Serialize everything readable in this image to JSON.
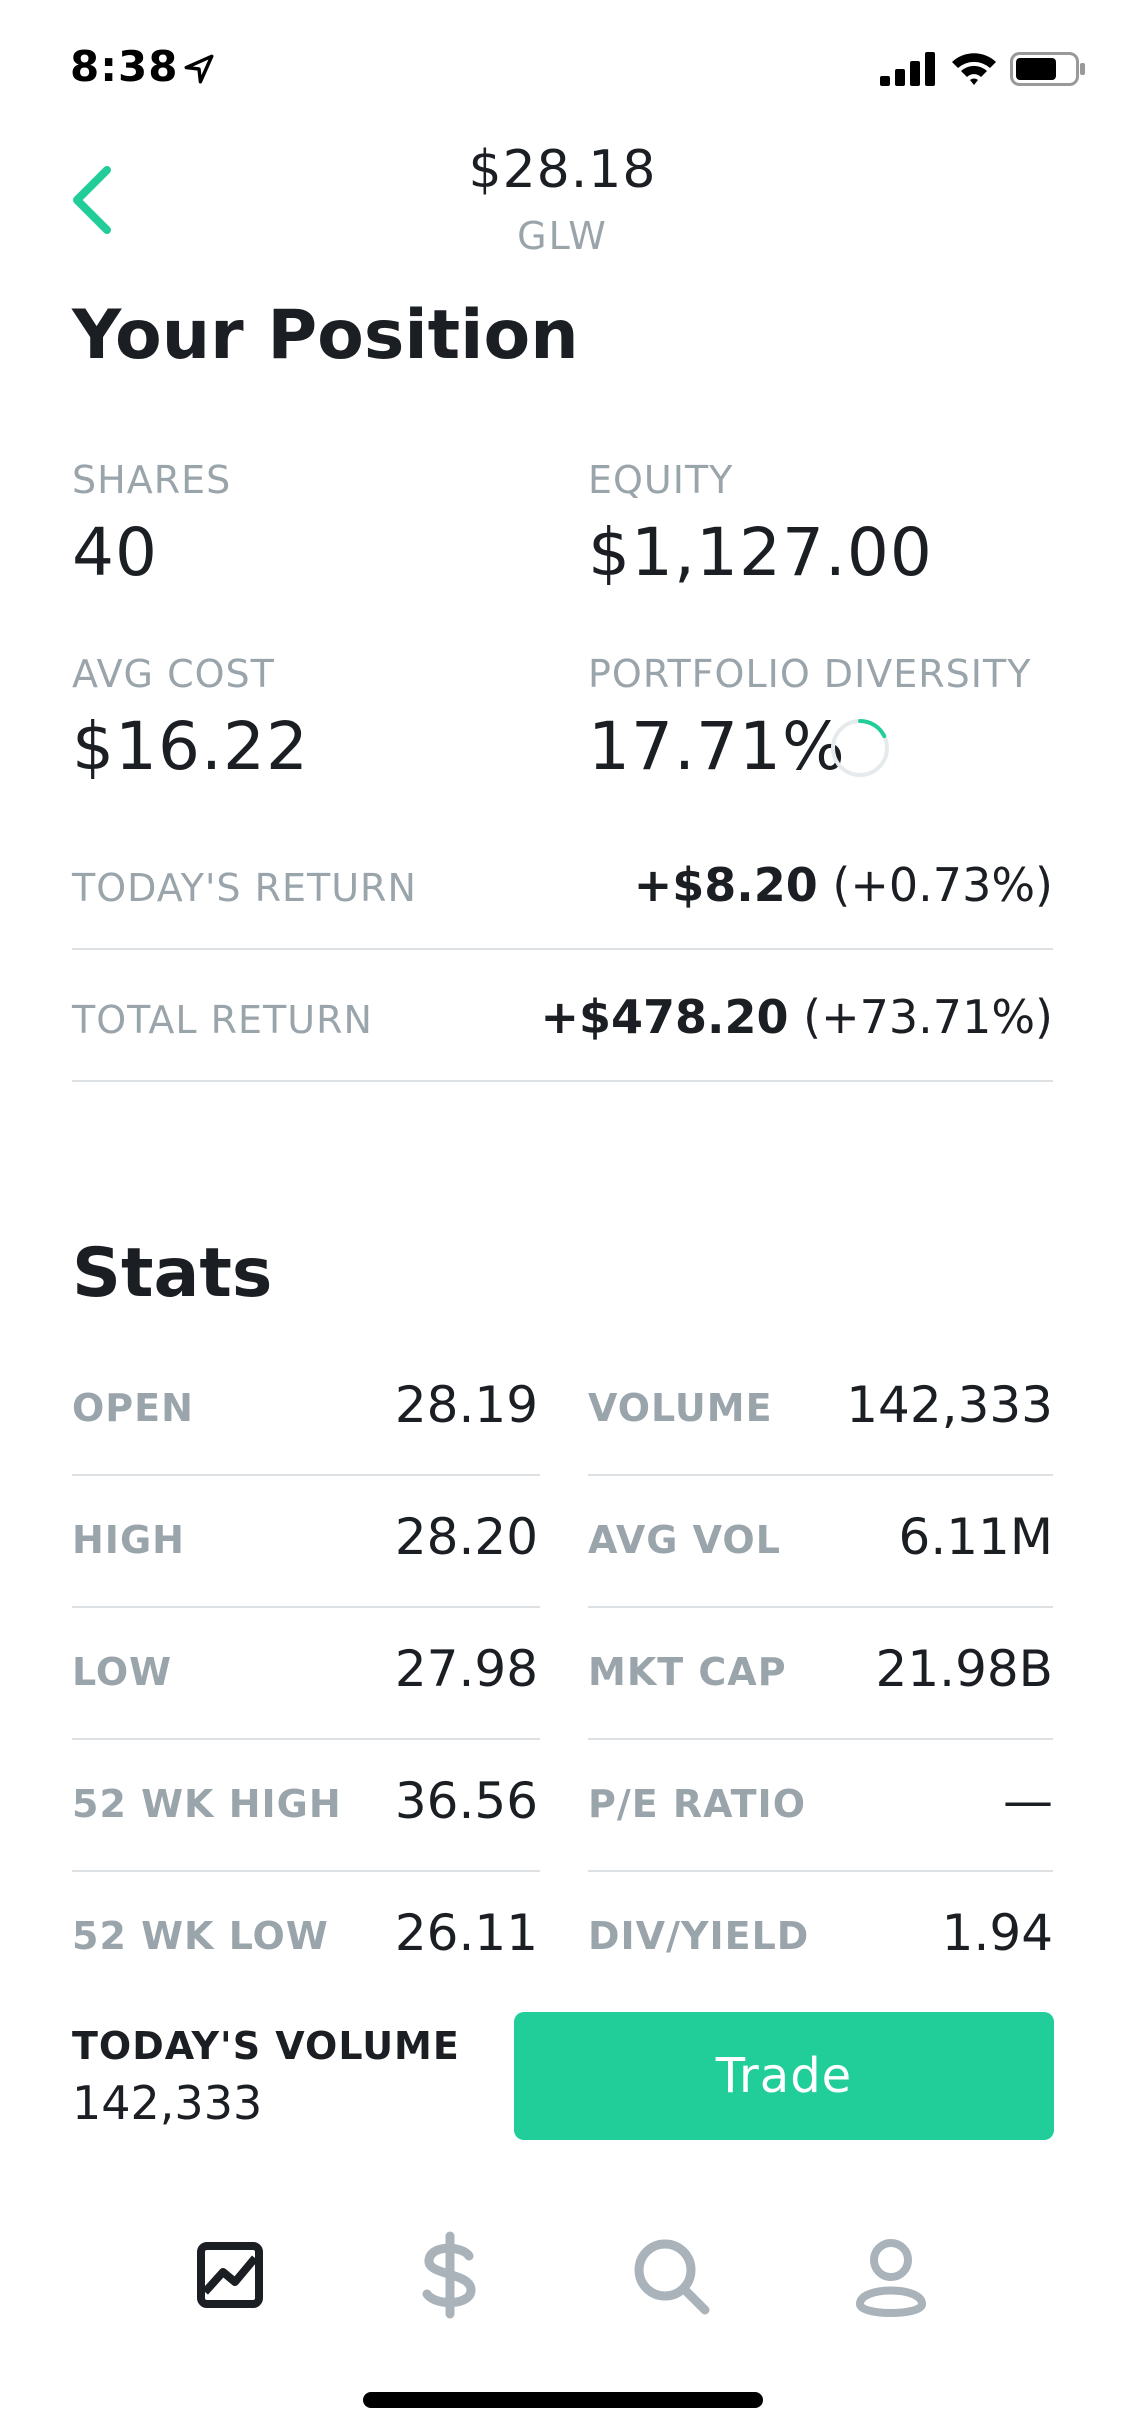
{
  "status_bar": {
    "time": "8:38"
  },
  "header": {
    "price": "$28.18",
    "ticker": "GLW"
  },
  "position": {
    "title": "Your Position",
    "shares_label": "SHARES",
    "shares_value": "40",
    "equity_label": "EQUITY",
    "equity_value": "$1,127.00",
    "avg_cost_label": "AVG COST",
    "avg_cost_value": "$16.22",
    "diversity_label": "PORTFOLIO DIVERSITY",
    "diversity_value": "17.71%",
    "diversity_fraction": 0.1771,
    "todays_return_label": "TODAY'S RETURN",
    "todays_return_amount": "+$8.20",
    "todays_return_pct": "(+0.73%)",
    "total_return_label": "TOTAL RETURN",
    "total_return_amount": "+$478.20",
    "total_return_pct": "(+73.71%)"
  },
  "stats": {
    "title": "Stats",
    "left": [
      {
        "label": "OPEN",
        "value": "28.19"
      },
      {
        "label": "HIGH",
        "value": "28.20"
      },
      {
        "label": "LOW",
        "value": "27.98"
      },
      {
        "label": "52 WK HIGH",
        "value": "36.56"
      },
      {
        "label": "52 WK LOW",
        "value": "26.11"
      }
    ],
    "right": [
      {
        "label": "VOLUME",
        "value": "142,333"
      },
      {
        "label": "AVG VOL",
        "value": "6.11M"
      },
      {
        "label": "MKT CAP",
        "value": "21.98B"
      },
      {
        "label": "P/E RATIO",
        "value": "—"
      },
      {
        "label": "DIV/YIELD",
        "value": "1.94"
      }
    ]
  },
  "bottom": {
    "volume_label": "TODAY'S VOLUME",
    "volume_value": "142,333",
    "trade_label": "Trade"
  },
  "tabs": [
    {
      "icon": "chart-icon",
      "active": true
    },
    {
      "icon": "dollar-icon",
      "active": false
    },
    {
      "icon": "search-icon",
      "active": false
    },
    {
      "icon": "account-icon",
      "active": false
    }
  ],
  "colors": {
    "accent": "#21ce99",
    "muted": "#9aa4ab",
    "text": "#1b1f23",
    "inactive_tab": "#a9b3b9"
  }
}
